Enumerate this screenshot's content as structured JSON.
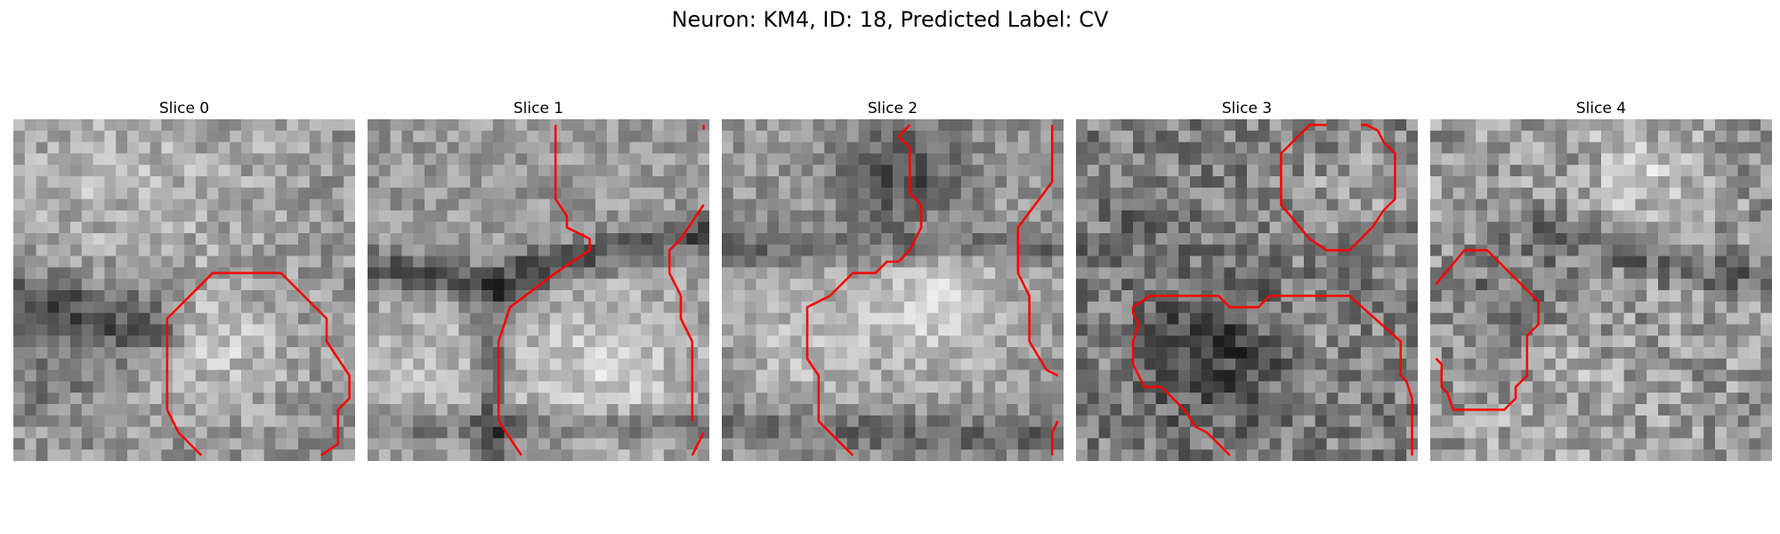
{
  "figure": {
    "title": "Neuron: KM4, ID: 18, Predicted Label: CV"
  },
  "colormap": "gray",
  "contour_color": "#ff0000",
  "slices": [
    {
      "title": "Slice 0"
    },
    {
      "title": "Slice 1"
    },
    {
      "title": "Slice 2"
    },
    {
      "title": "Slice 3"
    },
    {
      "title": "Slice 4"
    }
  ]
}
